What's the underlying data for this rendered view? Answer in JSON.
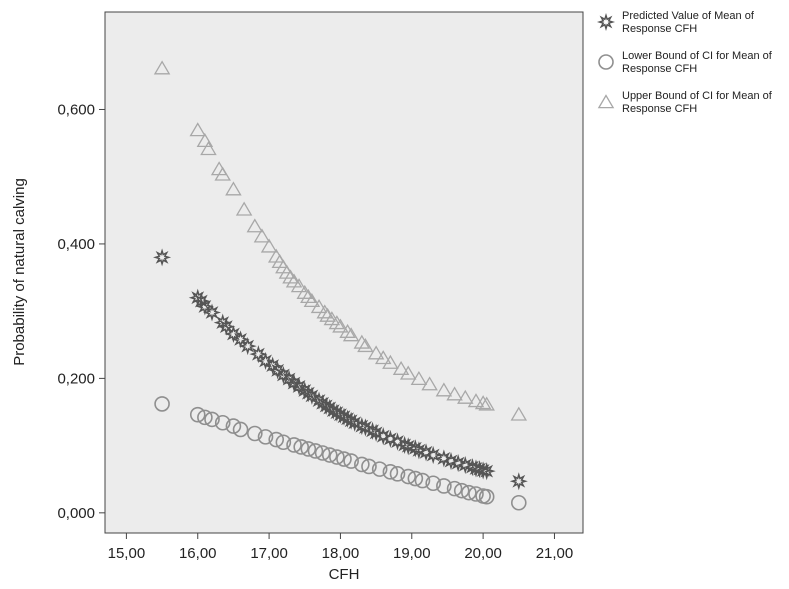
{
  "chart_data": {
    "type": "scatter",
    "xlabel": "CFH",
    "ylabel": "Probability of natural calving",
    "xlim": [
      14.7,
      21.4
    ],
    "ylim": [
      -0.03,
      0.745
    ],
    "x_ticks": [
      15,
      16,
      17,
      18,
      19,
      20,
      21
    ],
    "x_tick_labels": [
      "15,00",
      "16,00",
      "17,00",
      "18,00",
      "19,00",
      "20,00",
      "21,00"
    ],
    "y_ticks": [
      0,
      0.2,
      0.4,
      0.6
    ],
    "y_tick_labels": [
      "0,000",
      "0,200",
      "0,400",
      "0,600"
    ],
    "grid": false,
    "plot_background": "#ececec",
    "legend_position": "right",
    "series": [
      {
        "name": "Predicted Value of Mean of Response CFH",
        "marker": "star",
        "color": "#555555",
        "points": [
          [
            15.5,
            0.38
          ],
          [
            16.0,
            0.32
          ],
          [
            16.05,
            0.315
          ],
          [
            16.1,
            0.307
          ],
          [
            16.2,
            0.298
          ],
          [
            16.35,
            0.283
          ],
          [
            16.4,
            0.277
          ],
          [
            16.5,
            0.266
          ],
          [
            16.6,
            0.258
          ],
          [
            16.7,
            0.248
          ],
          [
            16.85,
            0.236
          ],
          [
            16.95,
            0.226
          ],
          [
            17.05,
            0.219
          ],
          [
            17.12,
            0.212
          ],
          [
            17.2,
            0.205
          ],
          [
            17.28,
            0.199
          ],
          [
            17.35,
            0.193
          ],
          [
            17.42,
            0.188
          ],
          [
            17.5,
            0.182
          ],
          [
            17.55,
            0.178
          ],
          [
            17.6,
            0.174
          ],
          [
            17.7,
            0.167
          ],
          [
            17.75,
            0.163
          ],
          [
            17.8,
            0.159
          ],
          [
            17.85,
            0.156
          ],
          [
            17.9,
            0.152
          ],
          [
            17.95,
            0.149
          ],
          [
            18.0,
            0.146
          ],
          [
            18.05,
            0.143
          ],
          [
            18.1,
            0.14
          ],
          [
            18.15,
            0.137
          ],
          [
            18.2,
            0.134
          ],
          [
            18.3,
            0.129
          ],
          [
            18.35,
            0.127
          ],
          [
            18.45,
            0.122
          ],
          [
            18.5,
            0.119
          ],
          [
            18.6,
            0.114
          ],
          [
            18.7,
            0.11
          ],
          [
            18.8,
            0.106
          ],
          [
            18.9,
            0.101
          ],
          [
            18.95,
            0.099
          ],
          [
            19.05,
            0.096
          ],
          [
            19.1,
            0.093
          ],
          [
            19.2,
            0.09
          ],
          [
            19.3,
            0.086
          ],
          [
            19.45,
            0.081
          ],
          [
            19.55,
            0.077
          ],
          [
            19.65,
            0.074
          ],
          [
            19.75,
            0.071
          ],
          [
            19.85,
            0.068
          ],
          [
            19.9,
            0.066
          ],
          [
            19.95,
            0.065
          ],
          [
            20.0,
            0.063
          ],
          [
            20.05,
            0.062
          ],
          [
            20.5,
            0.047
          ]
        ]
      },
      {
        "name": "Lower Bound of CI for Mean of Response CFH",
        "marker": "circle",
        "color": "#8f8f8f",
        "points": [
          [
            15.5,
            0.162
          ],
          [
            16.0,
            0.146
          ],
          [
            16.1,
            0.142
          ],
          [
            16.2,
            0.139
          ],
          [
            16.35,
            0.134
          ],
          [
            16.5,
            0.129
          ],
          [
            16.6,
            0.124
          ],
          [
            16.8,
            0.118
          ],
          [
            16.95,
            0.113
          ],
          [
            17.1,
            0.109
          ],
          [
            17.2,
            0.105
          ],
          [
            17.35,
            0.101
          ],
          [
            17.45,
            0.098
          ],
          [
            17.55,
            0.095
          ],
          [
            17.65,
            0.092
          ],
          [
            17.75,
            0.089
          ],
          [
            17.85,
            0.086
          ],
          [
            17.95,
            0.083
          ],
          [
            18.05,
            0.08
          ],
          [
            18.15,
            0.077
          ],
          [
            18.3,
            0.072
          ],
          [
            18.4,
            0.069
          ],
          [
            18.55,
            0.065
          ],
          [
            18.7,
            0.061
          ],
          [
            18.8,
            0.058
          ],
          [
            18.95,
            0.054
          ],
          [
            19.05,
            0.051
          ],
          [
            19.15,
            0.048
          ],
          [
            19.3,
            0.044
          ],
          [
            19.45,
            0.04
          ],
          [
            19.6,
            0.036
          ],
          [
            19.7,
            0.033
          ],
          [
            19.8,
            0.03
          ],
          [
            19.9,
            0.028
          ],
          [
            20.0,
            0.025
          ],
          [
            20.05,
            0.024
          ],
          [
            20.5,
            0.015
          ]
        ]
      },
      {
        "name": "Upper Bound of CI for Mean of Response CFH",
        "marker": "triangle",
        "color": "#a8a8a8",
        "points": [
          [
            15.5,
            0.66
          ],
          [
            16.0,
            0.568
          ],
          [
            16.1,
            0.552
          ],
          [
            16.15,
            0.54
          ],
          [
            16.3,
            0.51
          ],
          [
            16.35,
            0.502
          ],
          [
            16.5,
            0.48
          ],
          [
            16.65,
            0.45
          ],
          [
            16.8,
            0.425
          ],
          [
            16.9,
            0.41
          ],
          [
            17.0,
            0.395
          ],
          [
            17.1,
            0.38
          ],
          [
            17.15,
            0.372
          ],
          [
            17.2,
            0.364
          ],
          [
            17.25,
            0.356
          ],
          [
            17.3,
            0.349
          ],
          [
            17.35,
            0.343
          ],
          [
            17.42,
            0.336
          ],
          [
            17.5,
            0.326
          ],
          [
            17.55,
            0.32
          ],
          [
            17.6,
            0.314
          ],
          [
            17.7,
            0.305
          ],
          [
            17.78,
            0.297
          ],
          [
            17.82,
            0.292
          ],
          [
            17.88,
            0.287
          ],
          [
            17.95,
            0.281
          ],
          [
            18.0,
            0.276
          ],
          [
            18.1,
            0.268
          ],
          [
            18.15,
            0.263
          ],
          [
            18.3,
            0.252
          ],
          [
            18.35,
            0.247
          ],
          [
            18.5,
            0.236
          ],
          [
            18.6,
            0.229
          ],
          [
            18.7,
            0.222
          ],
          [
            18.85,
            0.213
          ],
          [
            18.95,
            0.206
          ],
          [
            19.1,
            0.198
          ],
          [
            19.25,
            0.19
          ],
          [
            19.45,
            0.181
          ],
          [
            19.6,
            0.175
          ],
          [
            19.75,
            0.17
          ],
          [
            19.9,
            0.165
          ],
          [
            20.0,
            0.162
          ],
          [
            20.05,
            0.16
          ],
          [
            20.5,
            0.145
          ]
        ]
      }
    ]
  }
}
